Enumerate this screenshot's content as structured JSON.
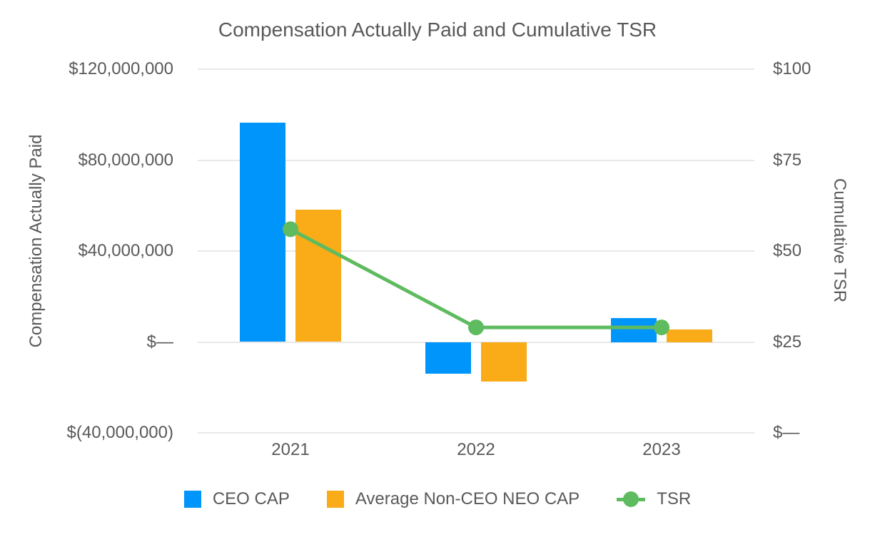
{
  "chart_data": {
    "type": "combo-bar-line",
    "title": "Compensation Actually Paid and Cumulative TSR",
    "categories": [
      "2021",
      "2022",
      "2023"
    ],
    "series": [
      {
        "name": "CEO CAP",
        "type": "bar",
        "axis": "left",
        "color": "#0095fb",
        "values": [
          96400000,
          -14100000,
          10500000
        ]
      },
      {
        "name": "Average Non-CEO NEO CAP",
        "type": "bar",
        "axis": "left",
        "color": "#f9ab18",
        "values": [
          58200000,
          -17400000,
          5500000
        ]
      },
      {
        "name": "TSR",
        "type": "line",
        "axis": "right",
        "color": "#5fbb5f",
        "values": [
          56,
          29,
          29
        ]
      }
    ],
    "left_axis": {
      "label": "Compensation Actually Paid",
      "min": -40000000,
      "max": 120000000,
      "tick_step": 40000000,
      "tick_labels": [
        "$120,000,000",
        "$80,000,000",
        "$40,000,000",
        "$—",
        "$(40,000,000)"
      ]
    },
    "right_axis": {
      "label": "Cumulative TSR",
      "min": 0,
      "max": 100,
      "tick_step": 25,
      "tick_labels": [
        "$100",
        "$75",
        "$50",
        "$25",
        "$—"
      ]
    },
    "grid": true,
    "legend_position": "bottom",
    "background_color": "#ffffff",
    "gridline_color": "#e8e8e8",
    "text_color": "#595959"
  }
}
